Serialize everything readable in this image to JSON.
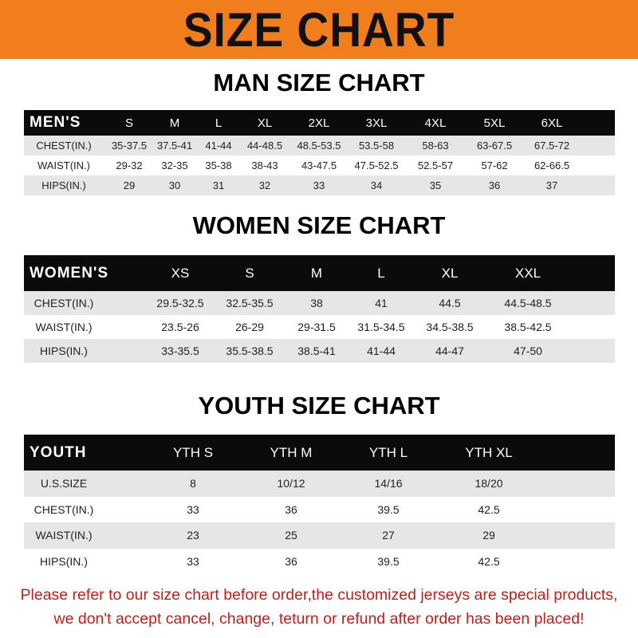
{
  "banner": {
    "title": "SIZE CHART",
    "color": "#f07e1c"
  },
  "men": {
    "title": "MAN SIZE CHART",
    "header": [
      "MEN'S",
      "S",
      "M",
      "L",
      "XL",
      "2XL",
      "3XL",
      "4XL",
      "5XL",
      "6XL"
    ],
    "rows": [
      [
        "CHEST(IN.)",
        "35-37.5",
        "37.5-41",
        "41-44",
        "44-48.5",
        "48.5-53.5",
        "53.5-58",
        "58-63",
        "63-67.5",
        "67.5-72"
      ],
      [
        "WAIST(IN.)",
        "29-32",
        "32-35",
        "35-38",
        "38-43",
        "43-47.5",
        "47.5-52.5",
        "52.5-57",
        "57-62",
        "62-66.5"
      ],
      [
        "HIPS(IN.)",
        "29",
        "30",
        "31",
        "32",
        "33",
        "34",
        "35",
        "36",
        "37"
      ]
    ]
  },
  "women": {
    "title": "WOMEN SIZE CHART",
    "header": [
      "WOMEN'S",
      "XS",
      "S",
      "M",
      "L",
      "XL",
      "XXL"
    ],
    "rows": [
      [
        "CHEST(IN.)",
        "29.5-32.5",
        "32.5-35.5",
        "38",
        "41",
        "44.5",
        "44.5-48.5"
      ],
      [
        "WAIST(IN.)",
        "23.5-26",
        "26-29",
        "29-31.5",
        "31.5-34.5",
        "34.5-38.5",
        "38.5-42.5"
      ],
      [
        "HIPS(IN.)",
        "33-35.5",
        "35.5-38.5",
        "38.5-41",
        "41-44",
        "44-47",
        "47-50"
      ]
    ]
  },
  "youth": {
    "title": "YOUTH SIZE CHART",
    "header": [
      "YOUTH",
      "YTH S",
      "YTH M",
      "YTH L",
      "YTH XL"
    ],
    "rows": [
      [
        "U.S.SIZE",
        "8",
        "10/12",
        "14/16",
        "18/20"
      ],
      [
        "CHEST(IN.)",
        "33",
        "36",
        "39.5",
        "42.5"
      ],
      [
        "WAIST(IN.)",
        "23",
        "25",
        "27",
        "29"
      ],
      [
        "HIPS(IN.)",
        "33",
        "36",
        "39.5",
        "42.5"
      ]
    ]
  },
  "footer": {
    "line1": "Please refer to our size chart before order,the customized jerseys are special products,",
    "line2": "we don't accept cancel, change, teturn or refund after order has been placed!",
    "color": "#c0201c"
  }
}
